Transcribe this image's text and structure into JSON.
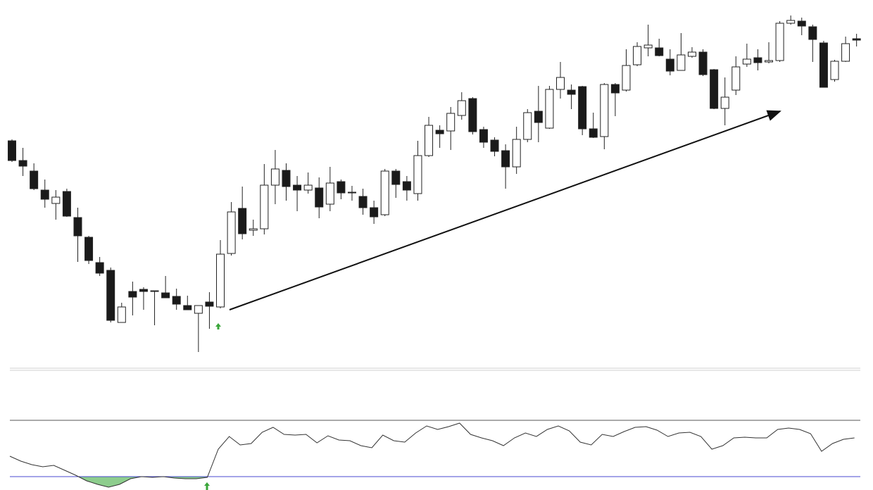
{
  "chart_data": [
    {
      "type": "candlestick",
      "ylim": [
        0,
        520
      ],
      "up_color": "#ffffff",
      "down_color": "#1a1a1a",
      "edge_color": "#222222",
      "open": [
        320,
        292,
        277,
        250,
        231,
        248,
        211,
        183,
        147,
        136,
        62,
        106,
        109,
        107,
        104,
        99,
        86,
        75,
        91,
        84,
        160,
        224,
        193,
        195,
        257,
        278,
        257,
        250,
        253,
        230,
        262,
        247,
        241,
        225,
        215,
        277,
        262,
        245,
        299,
        335,
        334,
        356,
        380,
        336,
        321,
        306,
        283,
        322,
        362,
        338,
        393,
        392,
        397,
        337,
        326,
        400,
        392,
        428,
        452,
        452,
        436,
        420,
        440,
        446,
        421,
        366,
        392,
        429,
        438,
        432,
        434,
        487,
        490,
        482,
        459,
        407,
        433,
        465
      ],
      "high": [
        322,
        310,
        288,
        265,
        250,
        252,
        225,
        185,
        155,
        140,
        90,
        120,
        112,
        107,
        128,
        110,
        100,
        86,
        105,
        179,
        233,
        255,
        208,
        287,
        307,
        288,
        270,
        275,
        268,
        283,
        265,
        256,
        252,
        235,
        280,
        280,
        270,
        320,
        354,
        342,
        368,
        389,
        382,
        340,
        325,
        315,
        340,
        365,
        398,
        398,
        432,
        400,
        398,
        360,
        402,
        402,
        450,
        460,
        485,
        465,
        450,
        473,
        453,
        450,
        422,
        410,
        440,
        458,
        450,
        460,
        490,
        498,
        495,
        485,
        462,
        435,
        468,
        472
      ],
      "low": [
        290,
        270,
        250,
        225,
        208,
        212,
        148,
        145,
        128,
        62,
        62,
        72,
        80,
        58,
        97,
        80,
        80,
        20,
        53,
        82,
        157,
        180,
        185,
        187,
        230,
        235,
        220,
        245,
        210,
        220,
        237,
        235,
        215,
        202,
        213,
        239,
        235,
        235,
        297,
        310,
        307,
        350,
        329,
        310,
        298,
        252,
        273,
        318,
        318,
        337,
        380,
        365,
        328,
        324,
        308,
        355,
        390,
        426,
        440,
        440,
        413,
        420,
        438,
        412,
        365,
        342,
        385,
        425,
        420,
        430,
        432,
        485,
        470,
        432,
        396,
        404,
        432,
        454
      ],
      "close": [
        292,
        284,
        252,
        237,
        240,
        213,
        185,
        150,
        132,
        65,
        84,
        98,
        106,
        106,
        97,
        88,
        80,
        86,
        85,
        159,
        219,
        188,
        195,
        257,
        280,
        255,
        250,
        257,
        226,
        260,
        246,
        246,
        225,
        212,
        277,
        258,
        250,
        299,
        342,
        330,
        359,
        377,
        333,
        318,
        305,
        283,
        322,
        360,
        346,
        393,
        410,
        386,
        337,
        325,
        400,
        388,
        427,
        454,
        456,
        441,
        419,
        442,
        446,
        414,
        366,
        382,
        425,
        436,
        431,
        434,
        487,
        491,
        483,
        464,
        396,
        433,
        458,
        463
      ]
    },
    {
      "type": "line",
      "ylim": [
        20,
        90
      ],
      "color": "#333333",
      "levels": [
        70,
        30
      ],
      "level_colors": [
        "#555555",
        "#4a4ad0"
      ],
      "fill_color": "#5cb85c",
      "values": [
        44.5,
        41,
        38.5,
        37,
        38,
        34.5,
        31,
        27,
        24.5,
        22.5,
        24.5,
        28.5,
        30,
        29.5,
        30,
        29,
        28.5,
        28.5,
        29.5,
        49.5,
        58.5,
        52.5,
        53.5,
        61.5,
        65,
        60,
        59.5,
        60,
        54,
        59,
        56,
        55.5,
        52,
        50.5,
        59.5,
        55.5,
        54.5,
        61,
        66,
        63.5,
        65.5,
        68,
        60,
        57.5,
        55.5,
        52,
        57.5,
        61,
        58.5,
        63.5,
        66,
        62.5,
        54.5,
        52.5,
        60,
        58.5,
        62,
        65,
        65.5,
        63,
        58.5,
        61,
        61.5,
        58.5,
        49.5,
        52,
        57.5,
        58,
        57.5,
        57.5,
        63.5,
        64.5,
        63.5,
        60.5,
        48,
        53.5,
        56.5,
        57.5
      ]
    }
  ]
}
